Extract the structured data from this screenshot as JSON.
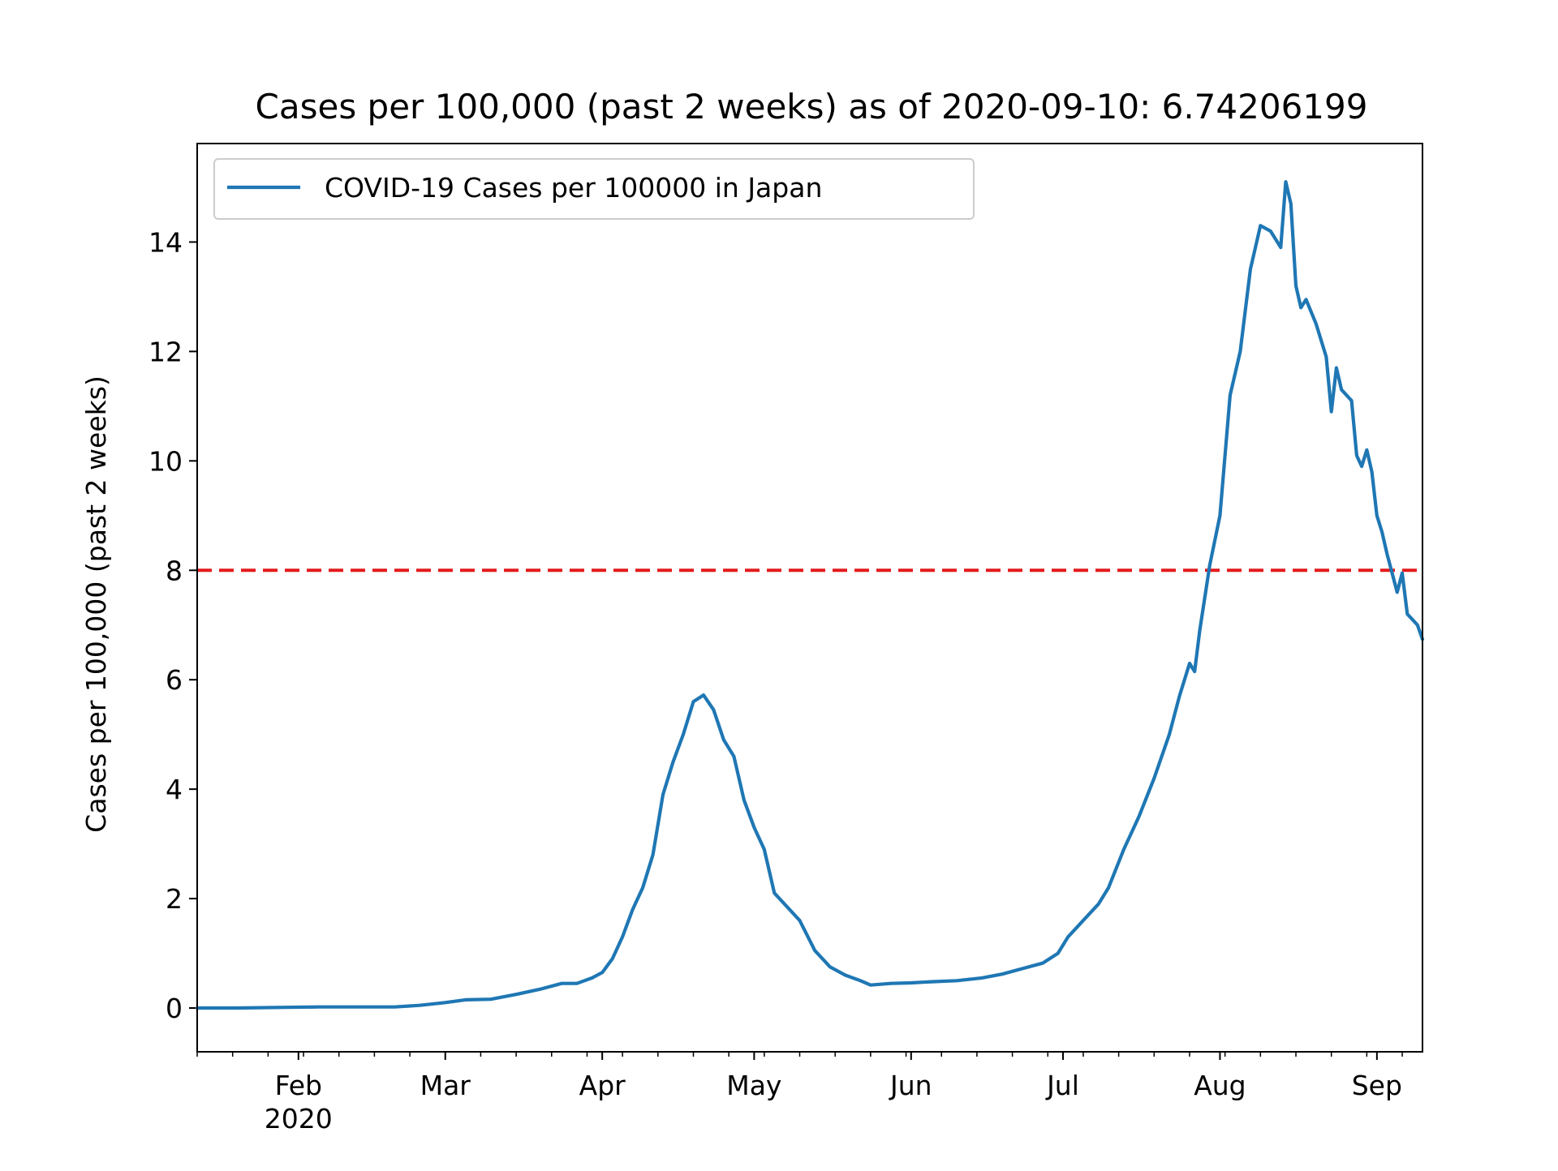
{
  "chart_data": {
    "type": "line",
    "title": "Cases per 100,000 (past 2 weeks) as of 2020-09-10: 6.74206199",
    "xlabel": "",
    "ylabel": "Cases per 100,000 (past 2 weeks)",
    "xlim": [
      "2020-01-12",
      "2020-09-10"
    ],
    "ylim": [
      -0.8,
      15.8
    ],
    "grid": false,
    "legend_position": "upper-left",
    "x_ticks": [
      {
        "date": "2020-02-01",
        "label": "Feb",
        "sublabel": "2020"
      },
      {
        "date": "2020-03-01",
        "label": "Mar",
        "sublabel": ""
      },
      {
        "date": "2020-04-01",
        "label": "Apr",
        "sublabel": ""
      },
      {
        "date": "2020-05-01",
        "label": "May",
        "sublabel": ""
      },
      {
        "date": "2020-06-01",
        "label": "Jun",
        "sublabel": ""
      },
      {
        "date": "2020-07-01",
        "label": "Jul",
        "sublabel": ""
      },
      {
        "date": "2020-08-01",
        "label": "Aug",
        "sublabel": ""
      },
      {
        "date": "2020-09-01",
        "label": "Sep",
        "sublabel": ""
      }
    ],
    "y_ticks": [
      0,
      2,
      4,
      6,
      8,
      10,
      12,
      14
    ],
    "threshold": {
      "value": 8,
      "color": "#e41a1c",
      "style": "dashed"
    },
    "series": [
      {
        "name": "COVID-19 Cases per 100000 in Japan",
        "color": "#1f77b4",
        "points": [
          [
            "2020-01-12",
            0.0
          ],
          [
            "2020-01-20",
            0.0
          ],
          [
            "2020-01-28",
            0.01
          ],
          [
            "2020-02-05",
            0.02
          ],
          [
            "2020-02-13",
            0.02
          ],
          [
            "2020-02-20",
            0.02
          ],
          [
            "2020-02-25",
            0.05
          ],
          [
            "2020-03-01",
            0.1
          ],
          [
            "2020-03-05",
            0.15
          ],
          [
            "2020-03-10",
            0.16
          ],
          [
            "2020-03-15",
            0.25
          ],
          [
            "2020-03-20",
            0.35
          ],
          [
            "2020-03-24",
            0.45
          ],
          [
            "2020-03-27",
            0.45
          ],
          [
            "2020-03-30",
            0.55
          ],
          [
            "2020-04-01",
            0.65
          ],
          [
            "2020-04-03",
            0.9
          ],
          [
            "2020-04-05",
            1.3
          ],
          [
            "2020-04-07",
            1.8
          ],
          [
            "2020-04-09",
            2.2
          ],
          [
            "2020-04-11",
            2.8
          ],
          [
            "2020-04-13",
            3.9
          ],
          [
            "2020-04-15",
            4.5
          ],
          [
            "2020-04-17",
            5.0
          ],
          [
            "2020-04-19",
            5.6
          ],
          [
            "2020-04-21",
            5.72
          ],
          [
            "2020-04-23",
            5.45
          ],
          [
            "2020-04-25",
            4.9
          ],
          [
            "2020-04-27",
            4.6
          ],
          [
            "2020-04-29",
            3.8
          ],
          [
            "2020-05-01",
            3.3
          ],
          [
            "2020-05-03",
            2.9
          ],
          [
            "2020-05-05",
            2.1
          ],
          [
            "2020-05-07",
            1.9
          ],
          [
            "2020-05-10",
            1.6
          ],
          [
            "2020-05-13",
            1.05
          ],
          [
            "2020-05-16",
            0.75
          ],
          [
            "2020-05-19",
            0.6
          ],
          [
            "2020-05-22",
            0.5
          ],
          [
            "2020-05-24",
            0.42
          ],
          [
            "2020-05-28",
            0.45
          ],
          [
            "2020-06-01",
            0.46
          ],
          [
            "2020-06-05",
            0.48
          ],
          [
            "2020-06-10",
            0.5
          ],
          [
            "2020-06-15",
            0.55
          ],
          [
            "2020-06-19",
            0.62
          ],
          [
            "2020-06-23",
            0.72
          ],
          [
            "2020-06-27",
            0.82
          ],
          [
            "2020-06-30",
            1.0
          ],
          [
            "2020-07-02",
            1.3
          ],
          [
            "2020-07-05",
            1.6
          ],
          [
            "2020-07-08",
            1.9
          ],
          [
            "2020-07-10",
            2.2
          ],
          [
            "2020-07-13",
            2.9
          ],
          [
            "2020-07-16",
            3.5
          ],
          [
            "2020-07-19",
            4.2
          ],
          [
            "2020-07-22",
            5.0
          ],
          [
            "2020-07-24",
            5.7
          ],
          [
            "2020-07-26",
            6.3
          ],
          [
            "2020-07-27",
            6.15
          ],
          [
            "2020-07-28",
            6.9
          ],
          [
            "2020-07-30",
            8.1
          ],
          [
            "2020-08-01",
            9.0
          ],
          [
            "2020-08-03",
            11.2
          ],
          [
            "2020-08-05",
            12.0
          ],
          [
            "2020-08-07",
            13.5
          ],
          [
            "2020-08-09",
            14.3
          ],
          [
            "2020-08-11",
            14.2
          ],
          [
            "2020-08-13",
            13.9
          ],
          [
            "2020-08-14",
            15.1
          ],
          [
            "2020-08-15",
            14.7
          ],
          [
            "2020-08-16",
            13.2
          ],
          [
            "2020-08-17",
            12.8
          ],
          [
            "2020-08-18",
            12.95
          ],
          [
            "2020-08-20",
            12.5
          ],
          [
            "2020-08-22",
            11.9
          ],
          [
            "2020-08-23",
            10.9
          ],
          [
            "2020-08-24",
            11.7
          ],
          [
            "2020-08-25",
            11.3
          ],
          [
            "2020-08-27",
            11.1
          ],
          [
            "2020-08-28",
            10.1
          ],
          [
            "2020-08-29",
            9.9
          ],
          [
            "2020-08-30",
            10.2
          ],
          [
            "2020-08-31",
            9.8
          ],
          [
            "2020-09-01",
            9.0
          ],
          [
            "2020-09-02",
            8.7
          ],
          [
            "2020-09-03",
            8.3
          ],
          [
            "2020-09-05",
            7.6
          ],
          [
            "2020-09-06",
            7.95
          ],
          [
            "2020-09-07",
            7.2
          ],
          [
            "2020-09-09",
            7.0
          ],
          [
            "2020-09-10",
            6.74
          ]
        ]
      }
    ]
  }
}
